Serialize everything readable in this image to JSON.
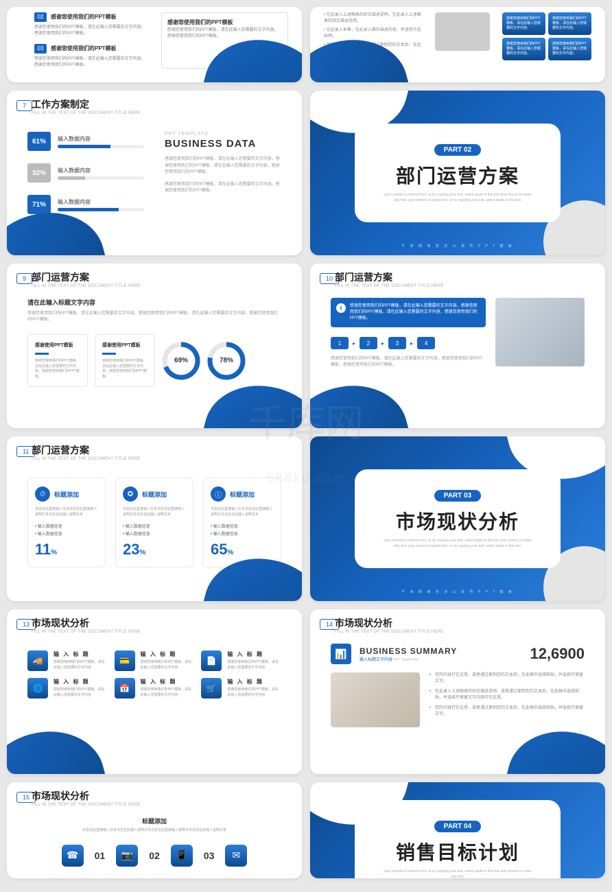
{
  "watermark": {
    "main": "千库网",
    "sub": "588ku.com"
  },
  "common": {
    "sub": "FILL IN THE TEXT OF THE DOCUMENT TITLE HERE"
  },
  "s5": {
    "items": [
      {
        "n": "02",
        "h": "感谢您使用我们的PPT模板",
        "p": "感谢您使用我们的PPT模板，请在此输入您需要的文字内容，感谢您使用我们的PPT模板。"
      },
      {
        "n": "03",
        "h": "感谢您使用我们的PPT模板",
        "p": "感谢您使用我们的PPT模板，请在此输入您需要的文字内容，感谢您使用我们的PPT模板。"
      }
    ],
    "card": {
      "h": "感谢您使用我们的PPT模板",
      "p": "感谢您使用我们的PPT模板，请在此输入您需要的文字内容，感谢您使用我们的PPT模板。"
    }
  },
  "s6": {
    "bullets": [
      "在此录入上述图表的综合描述说明，在此录入上述图表的综合描述说明。",
      "在此录入本章，在此录入图中描述内容，并适用于此标明。",
      "您的内容打在这里，或者通过复制您的文本后，在此框中选择粘贴，并选择只保留文字。"
    ],
    "blue": [
      "感谢您使用我们的PPT模板，请在此输入您需要的文字内容。",
      "感谢您使用我们的PPT模板，请在此输入您需要的文字内容。",
      "感谢您使用我们的PPT模板，请在此输入您需要的文字内容。",
      "感谢您使用我们的PPT模板，请在此输入您需要的文字内容。"
    ]
  },
  "s7": {
    "num": "7",
    "title": "工作方案制定",
    "bars": [
      {
        "pct": "61%",
        "v": 61,
        "lbl": "输入数据内容",
        "color": "#1764c0"
      },
      {
        "pct": "32%",
        "v": 32,
        "lbl": "输入数据内容",
        "color": "#bbb"
      },
      {
        "pct": "71%",
        "v": 71,
        "lbl": "输入数据内容",
        "color": "#1764c0"
      }
    ],
    "eyebrow": "PPT TEMPLATE",
    "h": "BUSINESS DATA",
    "p1": "感谢您使用我们的PPT模板，请在此输入您需要的文字内容。感谢您使用我们的PPT模板，请在此输入您需要的文字内容，感谢您使用我们的PPT模板。",
    "p2": "感谢您使用我们的PPT模板，请在此输入您需要的文字内容。感谢您使用我们的PPT模板。"
  },
  "s8": {
    "part": "PART 02",
    "title": "部门运营方案",
    "sub": "your content is entered here, or by copying your text, select paste in this box and choose to retain only text.\nyour content is typed here, or by copying your text, select paste in this box.",
    "foot": "千 库 网 商 务 办 公 系 列 P P T 模 板"
  },
  "s9": {
    "num": "9",
    "title": "部门运营方案",
    "h": "请在此输入标题文字内容",
    "p": "感谢您使用我们的PPT模板，请在此输入您需要的文字内容。感谢您使用我们的PPT模板，请在此输入您需要的文字内容，感谢您使用我们的PPT模板。",
    "cards": [
      {
        "t": "感谢使用PPT模板",
        "p": "感谢您使用我们的PPT模板，请在此输入您需要的文字内容，感谢您使用我们的PPT模板。"
      },
      {
        "t": "感谢使用PPT模板",
        "p": "感谢您使用我们的PPT模板，请在此输入您需要的文字内容，感谢您使用我们的PPT模板。"
      }
    ],
    "donuts": [
      {
        "v": 69,
        "lbl": "69%"
      },
      {
        "v": 78,
        "lbl": "78%"
      }
    ],
    "donut_color": "#1764c0",
    "donut_track": "#e5e5e5"
  },
  "s10": {
    "num": "10",
    "title": "部门运营方案",
    "info": "感谢您使用我们的PPT模板，请在此输入您需要的文字内容。感谢您使用我们的PPT模板，请在此输入您需要的文字内容，感谢您使用我们的PPT模板。",
    "steps": [
      "1",
      "2",
      "3",
      "4"
    ],
    "p": "感谢您使用我们的PPT模板，请在此输入您需要的文字内容。感谢您使用我们的PPT模板，感谢您使用我们的PPT模板。"
  },
  "s11": {
    "num": "11",
    "title": "部门运营方案",
    "cards": [
      {
        "ico": "⏱",
        "t": "标题添加",
        "d": "点击在此直接输入文本点击在此直接输入说明文本点击在此输入说明文本",
        "li": [
          "输入数据信息",
          "输入数据信息"
        ],
        "big": "11",
        "u": "%"
      },
      {
        "ico": "✪",
        "t": "标题添加",
        "d": "点击在此直接输入文本点击在此直接输入说明文本点击在此输入说明文本",
        "li": [
          "输入数据信息",
          "输入数据信息"
        ],
        "big": "23",
        "u": "%"
      },
      {
        "ico": "ⓘ",
        "t": "标题添加",
        "d": "点击在此直接输入文本点击在此直接输入说明文本点击在此输入说明文本",
        "li": [
          "输入数据信息",
          "输入数据信息"
        ],
        "big": "65",
        "u": "%"
      }
    ]
  },
  "s12": {
    "part": "PART 03",
    "title": "市场现状分析",
    "sub": "your content is entered here, or by copying your text, select paste in this box and choose to retain only text.\nyour content is typed here, or by copying your text, select paste in this box.",
    "foot": "千 库 网 商 务 办 公 系 列 P P T 模 板"
  },
  "s13": {
    "num": "13",
    "title": "市场现状分析",
    "items": [
      {
        "ico": "🚚",
        "t": "输 入 标 题",
        "d": "感谢您使用我们的PPT模板，请在此输入您需要的文字内容"
      },
      {
        "ico": "💳",
        "t": "输 入 标 题",
        "d": "感谢您使用我们的PPT模板，请在此输入您需要的文字内容"
      },
      {
        "ico": "📄",
        "t": "输 入 标 题",
        "d": "感谢您使用我们的PPT模板，请在此输入您需要的文字内容"
      },
      {
        "ico": "🌐",
        "t": "输 入 标 题",
        "d": "感谢您使用我们的PPT模板，请在此输入您需要的文字内容"
      },
      {
        "ico": "📅",
        "t": "输 入 标 题",
        "d": "感谢您使用我们的PPT模板，请在此输入您需要的文字内容"
      },
      {
        "ico": "🛒",
        "t": "输 入 标 题",
        "d": "感谢您使用我们的PPT模板，请在此输入您需要的文字内容"
      }
    ]
  },
  "s14": {
    "num": "14",
    "title": "市场现状分析",
    "h": "BUSINESS SUMMARY",
    "sh": "输入标题文字内容",
    "sh2": "PPT TEMPLATE",
    "num_big": "12,6900",
    "li": [
      "您的内容打在这里，或者通过复制您的文本后，在此框中选择粘贴，并选择只保留文字。",
      "在此录入上述图表的综合描述说明，或者通过复制您的文本后，在此框中选择粘贴，并选择只保留文字内容打在这里。",
      "您的内容打在这里，或者通过复制您的文本后，在此框中选择粘贴，并选择只保留文字。"
    ]
  },
  "s15": {
    "num": "15",
    "title": "市场现状分析",
    "h": "标题添加",
    "p": "点击在此直接输入文本点击在此输入说明文本点击在此直接输入说明文本点击在此输入说明文本",
    "items": [
      {
        "ico": "☎",
        "n": "01"
      },
      {
        "ico": "📷",
        "n": "02"
      },
      {
        "ico": "📱",
        "n": "03"
      },
      {
        "ico": "✉",
        "n": ""
      }
    ]
  },
  "s16": {
    "part": "PART 04",
    "title": "销售目标计划",
    "sub": "your content is entered here, or by copying your text, select paste in this box and choose to retain only text."
  },
  "colors": {
    "primary": "#1764c0",
    "primary_dark": "#0d4a8f",
    "gray": "#bbb",
    "track": "#eee"
  }
}
